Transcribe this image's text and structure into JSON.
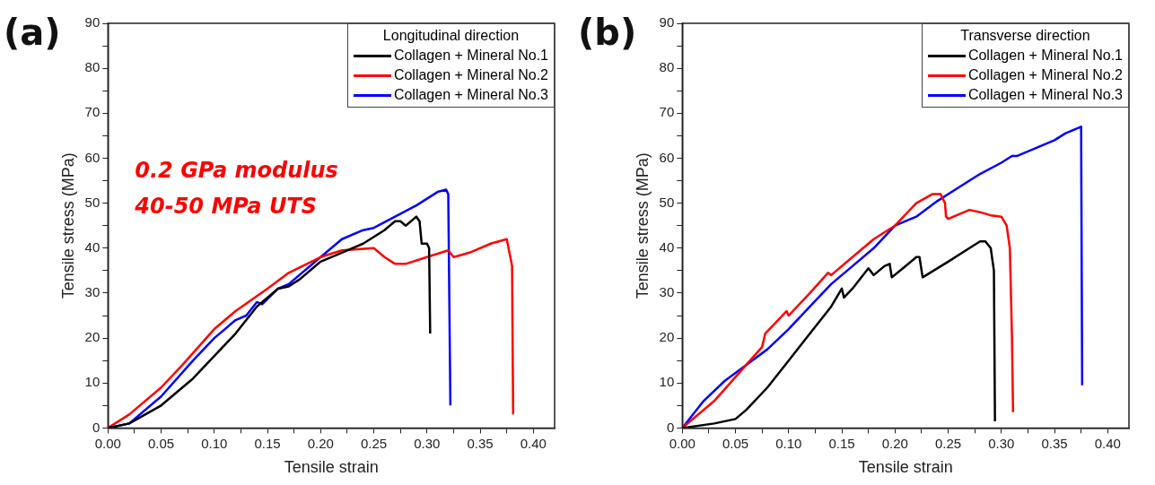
{
  "chart_data": [
    {
      "type": "line",
      "title": "(a)",
      "xlabel": "Tensile strain",
      "ylabel": "Tensile stress (MPa)",
      "legend_title": "Longitudinal direction",
      "legend": "top right",
      "grid": false,
      "marker": "none",
      "line_style": "solid",
      "annotations": [
        "0.2 GPa modulus",
        "40-50 MPa UTS"
      ],
      "xlim": [
        0,
        0.42
      ],
      "xticks": [
        {
          "value": 0,
          "label": "0.00"
        },
        {
          "value": 0.025,
          "label": null
        },
        {
          "value": 0.05,
          "label": "0.05"
        },
        {
          "value": 0.075,
          "label": null
        },
        {
          "value": 0.1,
          "label": "0.10"
        },
        {
          "value": 0.125,
          "label": null
        },
        {
          "value": 0.15,
          "label": "0.15"
        },
        {
          "value": 0.175,
          "label": null
        },
        {
          "value": 0.2,
          "label": "0.20"
        },
        {
          "value": 0.225,
          "label": null
        },
        {
          "value": 0.25,
          "label": "0.25"
        },
        {
          "value": 0.275,
          "label": null
        },
        {
          "value": 0.3,
          "label": "0.30"
        },
        {
          "value": 0.325,
          "label": null
        },
        {
          "value": 0.35,
          "label": "0.35"
        },
        {
          "value": 0.375,
          "label": null
        },
        {
          "value": 0.4,
          "label": "0.40"
        }
      ],
      "ylim": [
        0,
        90
      ],
      "yticks": [
        0,
        {
          "value": 5,
          "label": null
        },
        10,
        {
          "value": 15,
          "label": null
        },
        20,
        {
          "value": 25,
          "label": null
        },
        30,
        {
          "value": 35,
          "label": null
        },
        40,
        {
          "value": 45,
          "label": null
        },
        50,
        {
          "value": 55,
          "label": null
        },
        60,
        {
          "value": 65,
          "label": null
        },
        70,
        {
          "value": 75,
          "label": null
        },
        80,
        {
          "value": 85,
          "label": null
        },
        90
      ],
      "series": [
        {
          "name": "Collagen + Mineral No.1",
          "color": "#000000",
          "x": [
            0,
            0.02,
            0.05,
            0.08,
            0.1,
            0.12,
            0.14,
            0.16,
            0.17,
            0.18,
            0.2,
            0.22,
            0.24,
            0.26,
            0.27,
            0.275,
            0.28,
            0.29,
            0.293,
            0.295,
            0.3,
            0.302,
            0.303
          ],
          "values": [
            0,
            1,
            5,
            11,
            16,
            21,
            27,
            31,
            31.5,
            33,
            37,
            39,
            41,
            44,
            46,
            46,
            45,
            47,
            46,
            41,
            41,
            40,
            21
          ]
        },
        {
          "name": "Collagen + Mineral No.2",
          "color": "#ff0000",
          "x": [
            0,
            0.02,
            0.05,
            0.07,
            0.1,
            0.12,
            0.15,
            0.17,
            0.2,
            0.22,
            0.25,
            0.26,
            0.27,
            0.28,
            0.3,
            0.32,
            0.325,
            0.34,
            0.36,
            0.375,
            0.38,
            0.381
          ],
          "values": [
            0,
            3,
            9,
            14,
            22,
            26,
            31,
            34.5,
            38,
            39.5,
            40,
            38,
            36.5,
            36.5,
            38,
            39.5,
            38,
            39,
            41,
            42,
            36,
            3
          ]
        },
        {
          "name": "Collagen + Mineral No.3",
          "color": "#0000ff",
          "x": [
            0,
            0.02,
            0.05,
            0.08,
            0.1,
            0.12,
            0.13,
            0.14,
            0.145,
            0.16,
            0.17,
            0.2,
            0.22,
            0.24,
            0.25,
            0.27,
            0.29,
            0.31,
            0.318,
            0.32,
            0.322
          ],
          "values": [
            0,
            1,
            7,
            15,
            20,
            24,
            25,
            28,
            27.5,
            31,
            32,
            38,
            42,
            44,
            44.5,
            47,
            49.5,
            52.5,
            53,
            52,
            5
          ]
        }
      ]
    },
    {
      "type": "line",
      "title": "(b)",
      "xlabel": "Tensile strain",
      "ylabel": "Tensile stress (MPa)",
      "legend_title": "Transverse direction",
      "legend": "top right",
      "grid": false,
      "marker": "none",
      "line_style": "solid",
      "xlim": [
        0,
        0.42
      ],
      "xticks": [
        {
          "value": 0,
          "label": "0.00"
        },
        {
          "value": 0.025,
          "label": null
        },
        {
          "value": 0.05,
          "label": "0.05"
        },
        {
          "value": 0.075,
          "label": null
        },
        {
          "value": 0.1,
          "label": "0.10"
        },
        {
          "value": 0.125,
          "label": null
        },
        {
          "value": 0.15,
          "label": "0.15"
        },
        {
          "value": 0.175,
          "label": null
        },
        {
          "value": 0.2,
          "label": "0.20"
        },
        {
          "value": 0.225,
          "label": null
        },
        {
          "value": 0.25,
          "label": "0.25"
        },
        {
          "value": 0.275,
          "label": null
        },
        {
          "value": 0.3,
          "label": "0.30"
        },
        {
          "value": 0.325,
          "label": null
        },
        {
          "value": 0.35,
          "label": "0.35"
        },
        {
          "value": 0.375,
          "label": null
        },
        {
          "value": 0.4,
          "label": "0.40"
        }
      ],
      "ylim": [
        0,
        90
      ],
      "yticks": [
        0,
        {
          "value": 5,
          "label": null
        },
        10,
        {
          "value": 15,
          "label": null
        },
        20,
        {
          "value": 25,
          "label": null
        },
        30,
        {
          "value": 35,
          "label": null
        },
        40,
        {
          "value": 45,
          "label": null
        },
        50,
        {
          "value": 55,
          "label": null
        },
        60,
        {
          "value": 65,
          "label": null
        },
        70,
        {
          "value": 75,
          "label": null
        },
        80,
        {
          "value": 85,
          "label": null
        },
        90
      ],
      "series": [
        {
          "name": "Collagen + Mineral No.1",
          "color": "#000000",
          "x": [
            0,
            0.03,
            0.05,
            0.06,
            0.08,
            0.1,
            0.12,
            0.14,
            0.15,
            0.152,
            0.16,
            0.175,
            0.18,
            0.19,
            0.195,
            0.197,
            0.21,
            0.22,
            0.223,
            0.226,
            0.25,
            0.27,
            0.28,
            0.285,
            0.29,
            0.293,
            0.294
          ],
          "values": [
            0,
            1,
            2,
            4,
            9,
            15,
            21,
            27,
            31,
            29,
            31,
            35.5,
            34,
            36,
            36.5,
            33.5,
            36,
            38,
            38,
            33.5,
            37,
            40,
            41.5,
            41.5,
            40,
            35,
            1.5
          ]
        },
        {
          "name": "Collagen + Mineral No.2",
          "color": "#ff0000",
          "x": [
            0,
            0.03,
            0.06,
            0.075,
            0.077,
            0.078,
            0.09,
            0.098,
            0.1,
            0.12,
            0.137,
            0.14,
            0.16,
            0.18,
            0.2,
            0.22,
            0.235,
            0.243,
            0.247,
            0.248,
            0.25,
            0.27,
            0.28,
            0.29,
            0.3,
            0.305,
            0.308,
            0.31,
            0.311
          ],
          "values": [
            0,
            6,
            14,
            18,
            20,
            21,
            24,
            26,
            25,
            30,
            34.5,
            34,
            38,
            42,
            45,
            50,
            52,
            52,
            50,
            47,
            46.5,
            48.5,
            48,
            47.3,
            47,
            45,
            40,
            20,
            3.5
          ]
        },
        {
          "name": "Collagen + Mineral No.3",
          "color": "#0000ff",
          "x": [
            0,
            0.02,
            0.04,
            0.06,
            0.08,
            0.1,
            0.12,
            0.14,
            0.16,
            0.18,
            0.2,
            0.22,
            0.24,
            0.26,
            0.28,
            0.3,
            0.31,
            0.315,
            0.33,
            0.35,
            0.36,
            0.375,
            0.376
          ],
          "values": [
            0,
            6,
            10.5,
            14,
            17.5,
            22,
            27,
            32,
            36,
            40,
            45,
            47,
            50.5,
            53.5,
            56.5,
            59,
            60.5,
            60.5,
            62,
            64,
            65.5,
            67,
            9.5
          ]
        }
      ]
    }
  ]
}
